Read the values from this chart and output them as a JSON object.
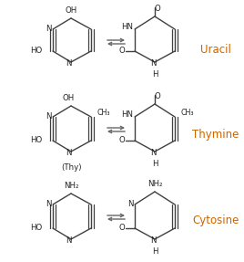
{
  "background_color": "#ffffff",
  "labels": {
    "uracil": "Uracil",
    "thymine": "Thymine",
    "cytosine": "Cytosine",
    "thy": "(Thy)"
  },
  "label_colors": {
    "uracil": "#cc6600",
    "thymine": "#cc6600",
    "cytosine": "#cc6600"
  },
  "label_fontsize": 8.5,
  "figsize": [
    2.68,
    2.87
  ],
  "dpi": 100
}
